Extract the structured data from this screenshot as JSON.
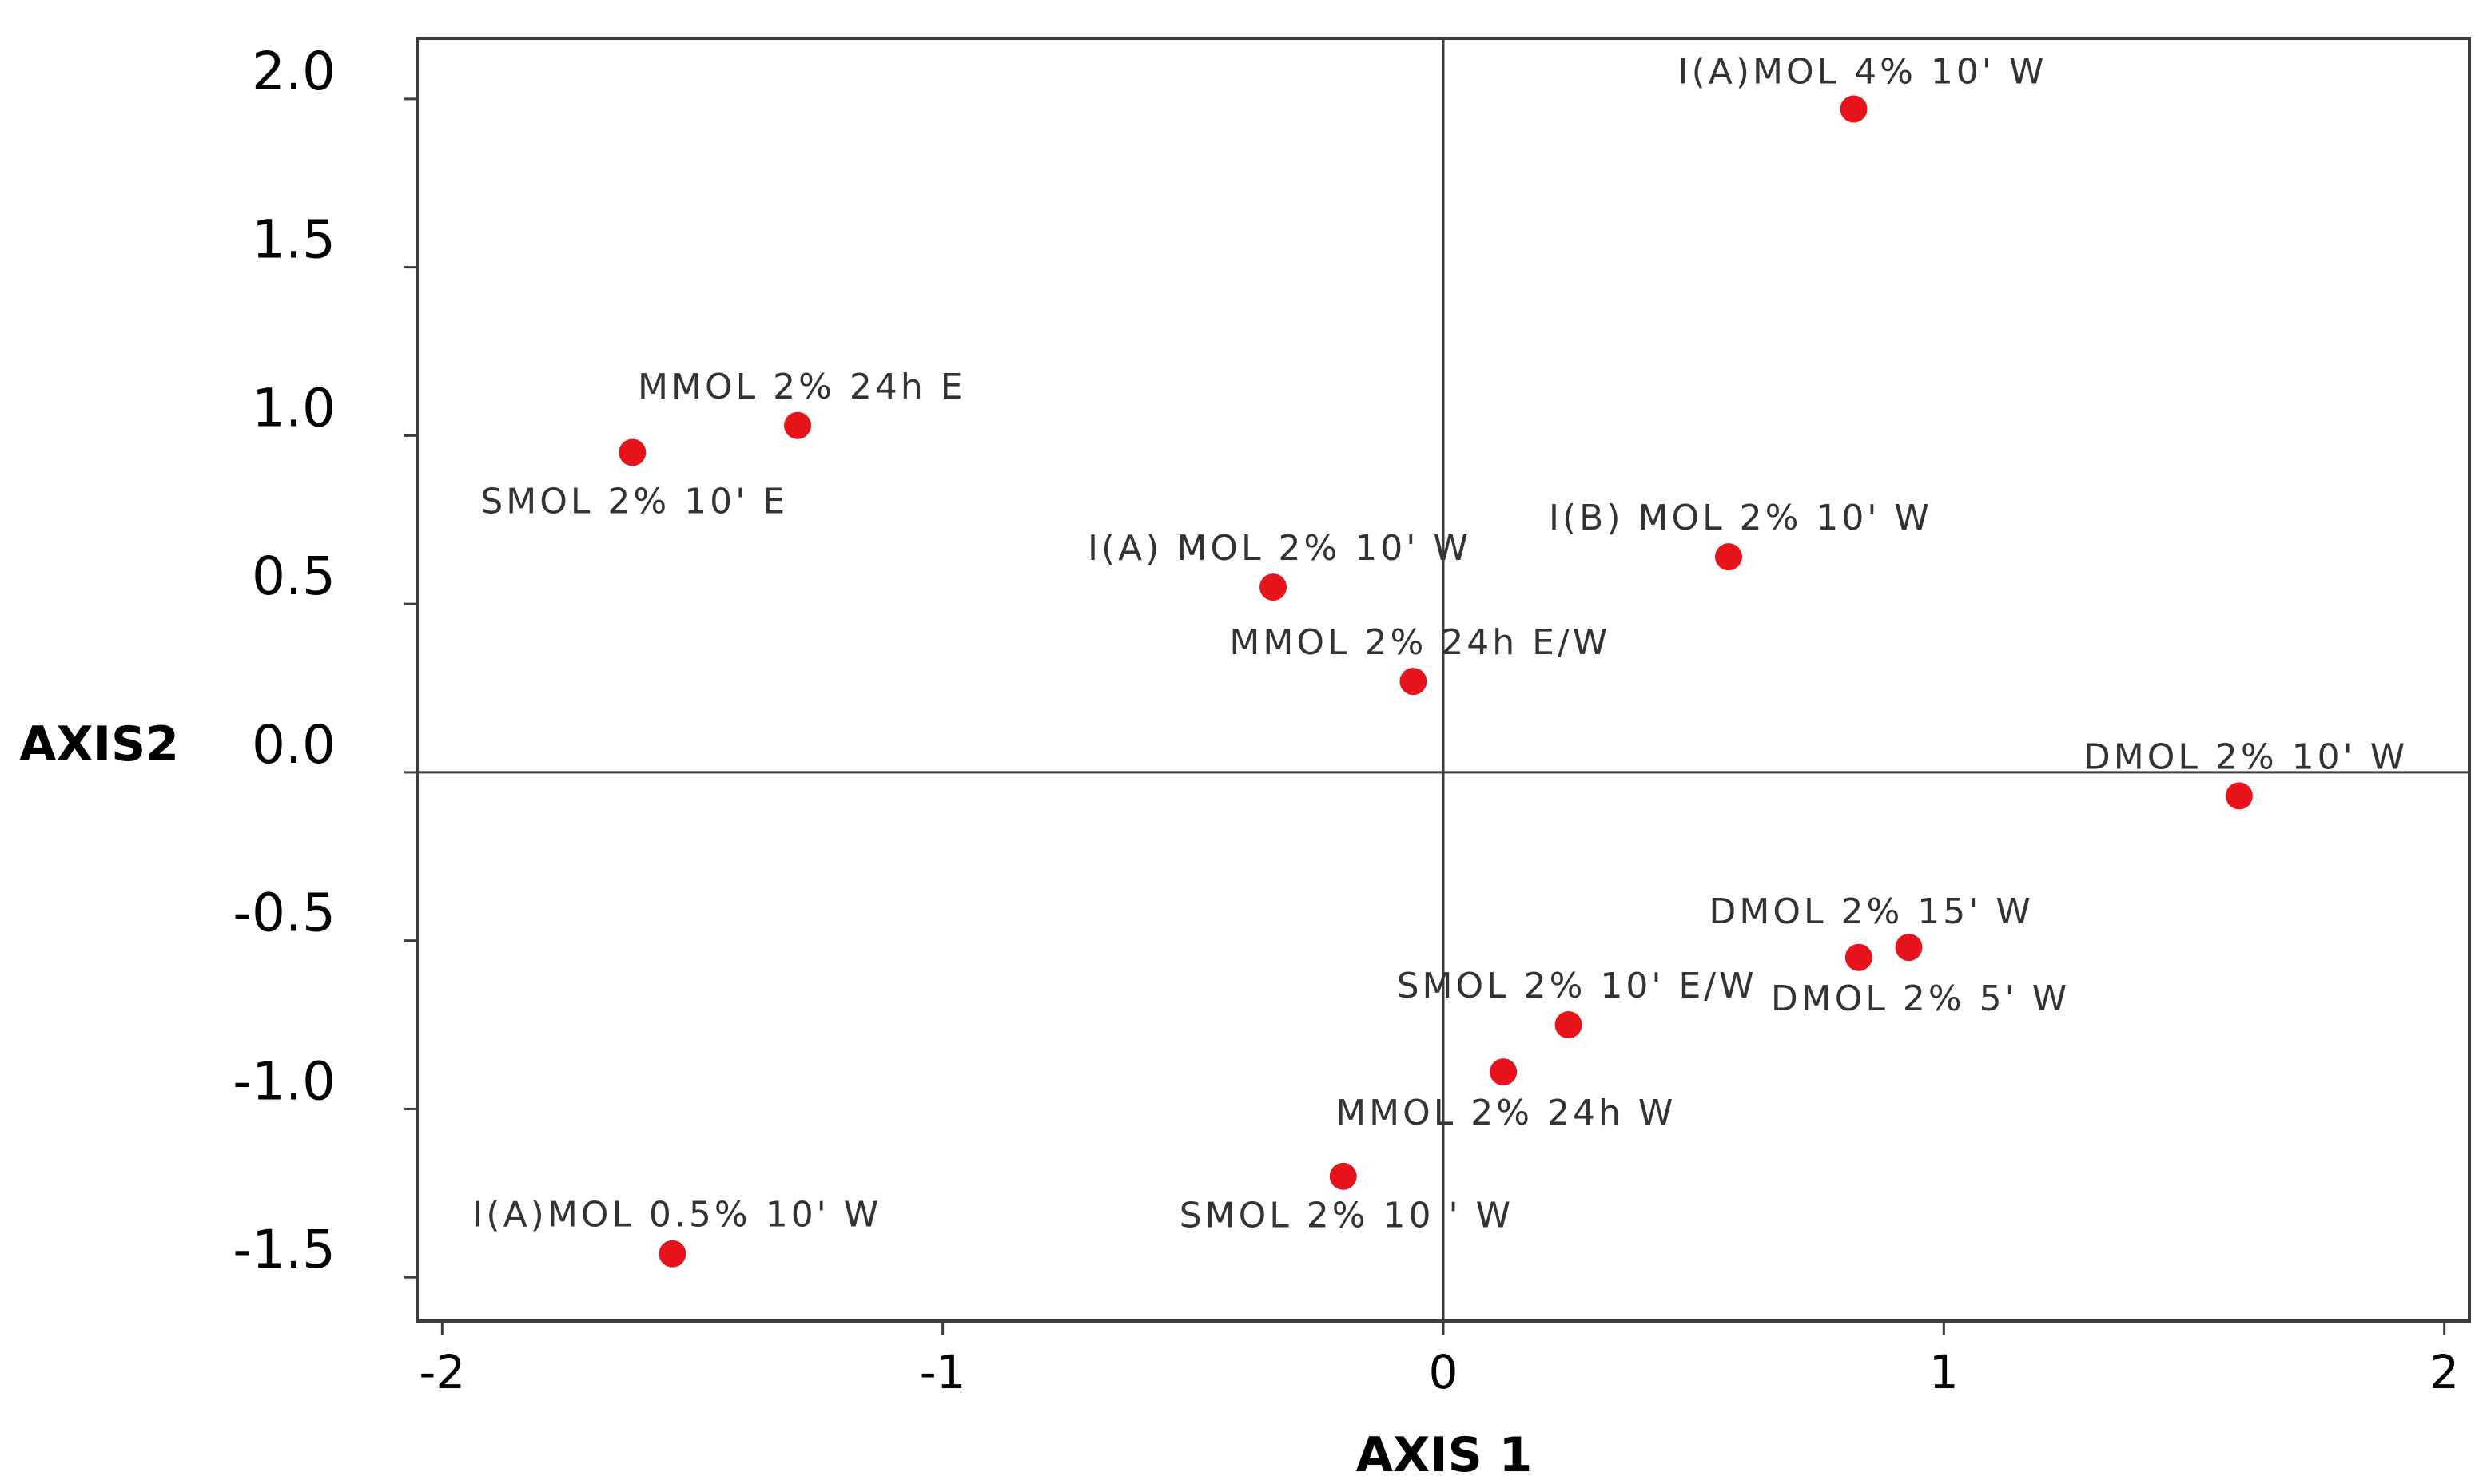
{
  "chart_data": {
    "type": "scatter",
    "title": "",
    "xlabel": "AXIS 1",
    "ylabel": "AXIS2",
    "xlim": [
      -2.05,
      2.05
    ],
    "ylim": [
      -1.63,
      2.18
    ],
    "xticks": [
      -2,
      -1,
      0,
      1,
      2
    ],
    "xtick_labels": [
      "-2",
      "-1",
      "0",
      "1",
      "2"
    ],
    "yticks": [
      2.0,
      1.5,
      1.0,
      0.5,
      0.0,
      -0.5,
      -1.0,
      -1.5
    ],
    "ytick_labels": [
      "2.0",
      "1.5",
      "1.0",
      "0.5",
      "0.0",
      "-0.5",
      "-1.0",
      "-1.5"
    ],
    "reference_lines": {
      "x": 0,
      "y": 0
    },
    "grid": false,
    "marker_color": "#e8141b",
    "points": [
      {
        "label": "I(A)MOL 4%  10' W",
        "x": 0.82,
        "y": 1.97
      },
      {
        "label": "MMOL 2%  24h E",
        "x": -1.29,
        "y": 1.03
      },
      {
        "label": "SMOL 2%  10' E",
        "x": -1.62,
        "y": 0.95
      },
      {
        "label": "I(B) MOL 2%  10' W",
        "x": 0.57,
        "y": 0.64
      },
      {
        "label": "I(A) MOL 2%  10' W",
        "x": -0.34,
        "y": 0.55
      },
      {
        "label": "MMOL 2%  24h E/W",
        "x": -0.06,
        "y": 0.27
      },
      {
        "label": "DMOL 2%  10' W",
        "x": 1.59,
        "y": -0.07
      },
      {
        "label": "DMOL 2%  15' W",
        "x": 0.93,
        "y": -0.52
      },
      {
        "label": "DMOL 2%  5' W",
        "x": 0.83,
        "y": -0.55
      },
      {
        "label": "SMOL 2%  10' E/W",
        "x": 0.25,
        "y": -0.75
      },
      {
        "label": "MMOL 2%  24h W",
        "x": 0.12,
        "y": -0.89
      },
      {
        "label": "SMOL 2%  10 ' W",
        "x": -0.2,
        "y": -1.2
      },
      {
        "label": "I(A)MOL 0.5%  10' W",
        "x": -1.54,
        "y": -1.43
      }
    ]
  }
}
